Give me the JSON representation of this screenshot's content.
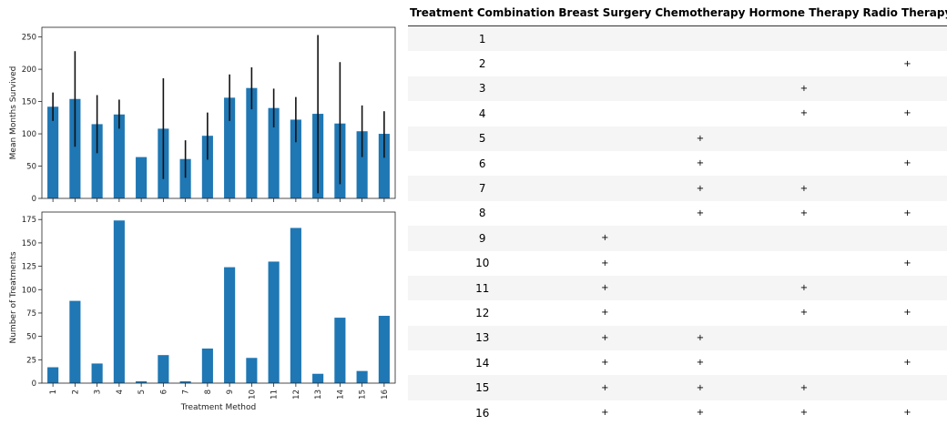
{
  "chart_data": [
    {
      "type": "bar",
      "title": "",
      "xlabel": "",
      "ylabel": "Mean Months Survived",
      "categories": [
        "1",
        "2",
        "3",
        "4",
        "5",
        "6",
        "7",
        "8",
        "9",
        "10",
        "11",
        "12",
        "13",
        "14",
        "15",
        "16"
      ],
      "values": [
        142,
        154,
        115,
        130,
        64,
        108,
        61,
        97,
        156,
        171,
        140,
        122,
        131,
        116,
        104,
        100
      ],
      "error_low": [
        120,
        80,
        70,
        108,
        64,
        30,
        32,
        60,
        120,
        138,
        110,
        87,
        8,
        22,
        64,
        63
      ],
      "error_high": [
        164,
        228,
        160,
        153,
        64,
        186,
        90,
        133,
        192,
        203,
        170,
        157,
        253,
        211,
        144,
        135
      ],
      "yticks": [
        0,
        50,
        100,
        150,
        200,
        250
      ],
      "ylim": [
        0,
        265
      ],
      "color": "#1f77b4"
    },
    {
      "type": "bar",
      "title": "",
      "xlabel": "Treatment Method",
      "ylabel": "Number of Treatments",
      "categories": [
        "1",
        "2",
        "3",
        "4",
        "5",
        "6",
        "7",
        "8",
        "9",
        "10",
        "11",
        "12",
        "13",
        "14",
        "15",
        "16"
      ],
      "values": [
        17,
        88,
        21,
        174,
        2,
        30,
        2,
        37,
        124,
        27,
        130,
        166,
        10,
        70,
        13,
        72
      ],
      "yticks": [
        0,
        25,
        50,
        75,
        100,
        125,
        150,
        175
      ],
      "ylim": [
        0,
        183
      ],
      "color": "#1f77b4"
    }
  ],
  "table": {
    "headers": [
      "Treatment Combination",
      "Breast Surgery",
      "Chemotherapy",
      "Hormone Therapy",
      "Radio Therapy"
    ],
    "rows": [
      [
        "1",
        "",
        "",
        "",
        ""
      ],
      [
        "2",
        "",
        "",
        "",
        "+"
      ],
      [
        "3",
        "",
        "",
        "+",
        ""
      ],
      [
        "4",
        "",
        "",
        "+",
        "+"
      ],
      [
        "5",
        "",
        "+",
        "",
        ""
      ],
      [
        "6",
        "",
        "+",
        "",
        "+"
      ],
      [
        "7",
        "",
        "+",
        "+",
        ""
      ],
      [
        "8",
        "",
        "+",
        "+",
        "+"
      ],
      [
        "9",
        "+",
        "",
        "",
        ""
      ],
      [
        "10",
        "+",
        "",
        "",
        "+"
      ],
      [
        "11",
        "+",
        "",
        "+",
        ""
      ],
      [
        "12",
        "+",
        "",
        "+",
        "+"
      ],
      [
        "13",
        "+",
        "+",
        "",
        ""
      ],
      [
        "14",
        "+",
        "+",
        "",
        "+"
      ],
      [
        "15",
        "+",
        "+",
        "+",
        ""
      ],
      [
        "16",
        "+",
        "+",
        "+",
        "+"
      ]
    ]
  }
}
